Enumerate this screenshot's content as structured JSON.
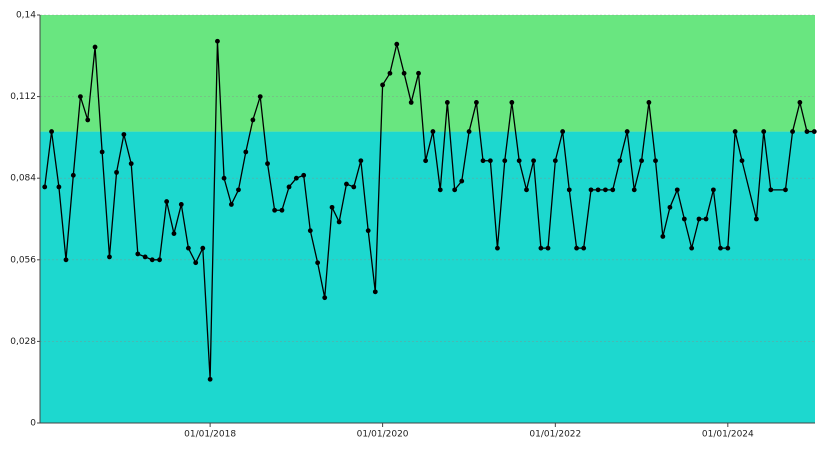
{
  "chart_data": {
    "type": "line",
    "x": [
      "2016-02-01",
      "2016-03-01",
      "2016-04-01",
      "2016-05-01",
      "2016-06-01",
      "2016-07-01",
      "2016-08-01",
      "2016-09-01",
      "2016-10-01",
      "2016-11-01",
      "2016-12-01",
      "2017-01-01",
      "2017-02-01",
      "2017-03-01",
      "2017-04-01",
      "2017-05-01",
      "2017-06-01",
      "2017-07-01",
      "2017-08-01",
      "2017-09-01",
      "2017-10-01",
      "2017-11-01",
      "2017-12-01",
      "2018-01-01",
      "2018-02-01",
      "2018-03-01",
      "2018-04-01",
      "2018-05-01",
      "2018-06-01",
      "2018-07-01",
      "2018-08-01",
      "2018-09-01",
      "2018-10-01",
      "2018-11-01",
      "2018-12-01",
      "2019-01-01",
      "2019-02-01",
      "2019-03-01",
      "2019-04-01",
      "2019-05-01",
      "2019-06-01",
      "2019-07-01",
      "2019-08-01",
      "2019-09-01",
      "2019-10-01",
      "2019-11-01",
      "2019-12-01",
      "2020-01-01",
      "2020-02-01",
      "2020-03-01",
      "2020-04-01",
      "2020-05-01",
      "2020-06-01",
      "2020-07-01",
      "2020-08-01",
      "2020-09-01",
      "2020-10-01",
      "2020-11-01",
      "2020-12-01",
      "2021-01-01",
      "2021-02-01",
      "2021-03-01",
      "2021-04-01",
      "2021-05-01",
      "2021-06-01",
      "2021-07-01",
      "2021-08-01",
      "2021-09-01",
      "2021-10-01",
      "2021-11-01",
      "2021-12-01",
      "2022-01-01",
      "2022-02-01",
      "2022-03-01",
      "2022-04-01",
      "2022-05-01",
      "2022-06-01",
      "2022-07-01",
      "2022-08-01",
      "2022-09-01",
      "2022-10-01",
      "2022-11-01",
      "2022-12-01",
      "2023-01-01",
      "2023-02-01",
      "2023-03-01",
      "2023-04-01",
      "2023-05-01",
      "2023-06-01",
      "2023-07-01",
      "2023-08-01",
      "2023-09-01",
      "2023-10-01",
      "2023-11-01",
      "2023-12-01",
      "2024-01-01",
      "2024-02-01",
      "2024-03-01",
      "2024-05-01",
      "2024-06-01",
      "2024-07-01",
      "2024-09-01",
      "2024-10-01",
      "2024-11-01",
      "2024-12-01",
      "2025-01-01"
    ],
    "series": [
      {
        "color": "#000000",
        "values": [
          0.081,
          0.1,
          0.081,
          0.056,
          0.085,
          0.112,
          0.104,
          0.129,
          0.093,
          0.057,
          0.086,
          0.099,
          0.089,
          0.058,
          0.057,
          0.056,
          0.056,
          0.076,
          0.065,
          0.075,
          0.06,
          0.055,
          0.06,
          0.015,
          0.131,
          0.084,
          0.075,
          0.08,
          0.093,
          0.104,
          0.112,
          0.089,
          0.073,
          0.073,
          0.081,
          0.084,
          0.085,
          0.066,
          0.055,
          0.043,
          0.074,
          0.069,
          0.082,
          0.081,
          0.09,
          0.066,
          0.045,
          0.116,
          0.12,
          0.13,
          0.12,
          0.11,
          0.12,
          0.09,
          0.1,
          0.08,
          0.11,
          0.08,
          0.083,
          0.1,
          0.11,
          0.09,
          0.09,
          0.06,
          0.09,
          0.11,
          0.09,
          0.08,
          0.09,
          0.06,
          0.06,
          0.09,
          0.1,
          0.08,
          0.06,
          0.06,
          0.08,
          0.08,
          0.08,
          0.08,
          0.09,
          0.1,
          0.08,
          0.09,
          0.11,
          0.09,
          0.064,
          0.074,
          0.08,
          0.07,
          0.06,
          0.07,
          0.07,
          0.08,
          0.06,
          0.06,
          0.1,
          0.09,
          0.07,
          0.1,
          0.08,
          0.08,
          0.1,
          0.11,
          0.1,
          0.1
        ]
      }
    ],
    "xlim": [
      "2016-01-12",
      "2025-01-04"
    ],
    "xticks": [
      {
        "value": "2018-01-01",
        "label": "01/01/2018"
      },
      {
        "value": "2020-01-01",
        "label": "01/01/2020"
      },
      {
        "value": "2022-01-01",
        "label": "01/01/2022"
      },
      {
        "value": "2024-01-01",
        "label": "01/01/2024"
      }
    ],
    "ylim": [
      0,
      0.14
    ],
    "yticks": [
      0,
      {
        "value": 0.028,
        "label": "0,028"
      },
      {
        "value": 0.056,
        "label": "0,056"
      },
      {
        "value": 0.084,
        "label": "0,084"
      },
      {
        "value": 0.112,
        "label": "0,112"
      },
      {
        "value": 0.14,
        "label": "0,14"
      }
    ],
    "grid": true,
    "bands": [
      {
        "from": 0,
        "to": 0.1,
        "color": "#1dd8cf"
      },
      {
        "from": 0.1,
        "to": 0.14,
        "color": "#69e680"
      }
    ]
  }
}
